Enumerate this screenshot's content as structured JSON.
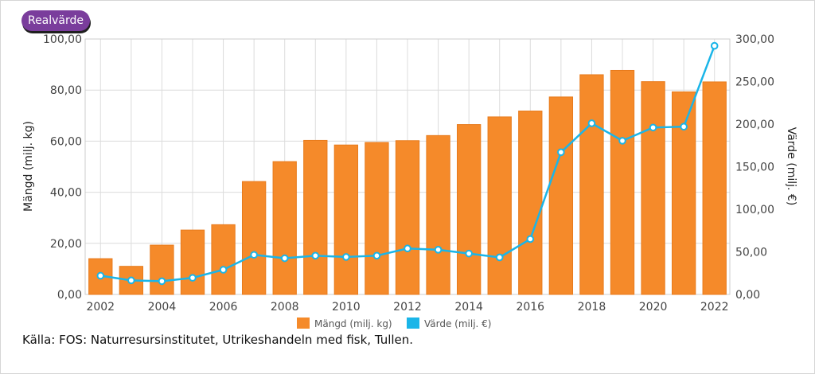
{
  "badge": {
    "label": "Realvärde"
  },
  "source": "Källa: FOS: Naturresursinstitutet, Utrikeshandeln med fisk, Tullen.",
  "chart_data": {
    "type": "bar",
    "categories": [
      "2002",
      "2003",
      "2004",
      "2005",
      "2006",
      "2007",
      "2008",
      "2009",
      "2010",
      "2011",
      "2012",
      "2013",
      "2014",
      "2015",
      "2016",
      "2017",
      "2018",
      "2019",
      "2020",
      "2021",
      "2022"
    ],
    "series": [
      {
        "name": "Mängd (milj. kg)",
        "type": "bar",
        "axis": "left",
        "color": "#f58a2a",
        "values": [
          14.0,
          11.0,
          19.3,
          25.2,
          27.3,
          44.2,
          52.0,
          60.3,
          58.5,
          59.5,
          60.2,
          62.2,
          66.5,
          69.5,
          71.8,
          77.3,
          86.0,
          87.7,
          83.3,
          79.3,
          83.2
        ]
      },
      {
        "name": "Värde (milj. €)",
        "type": "line",
        "axis": "right",
        "color": "#1ab5e8",
        "values": [
          22.0,
          16.5,
          15.5,
          19.5,
          29.0,
          46.5,
          42.5,
          45.5,
          44.0,
          45.5,
          54.0,
          52.5,
          48.0,
          43.5,
          65.0,
          167.0,
          201.0,
          180.5,
          196.0,
          197.0,
          292.0
        ]
      }
    ],
    "x_tick_labels": [
      "2002",
      "2004",
      "2006",
      "2008",
      "2010",
      "2012",
      "2014",
      "2016",
      "2018",
      "2020",
      "2022"
    ],
    "ylabel": "Mängd (milj. kg)",
    "ylabel_right": "Värde (milj. €)",
    "y_ticks": [
      "0,00",
      "20,00",
      "40,00",
      "60,00",
      "80,00",
      "100,00"
    ],
    "y_right_ticks": [
      "0,00",
      "50,00",
      "100,00",
      "150,00",
      "200,00",
      "250,00",
      "300,00"
    ],
    "ylim": [
      0,
      100
    ],
    "ylim_right": [
      0,
      300
    ],
    "grid": true,
    "legend_position": "bottom"
  }
}
